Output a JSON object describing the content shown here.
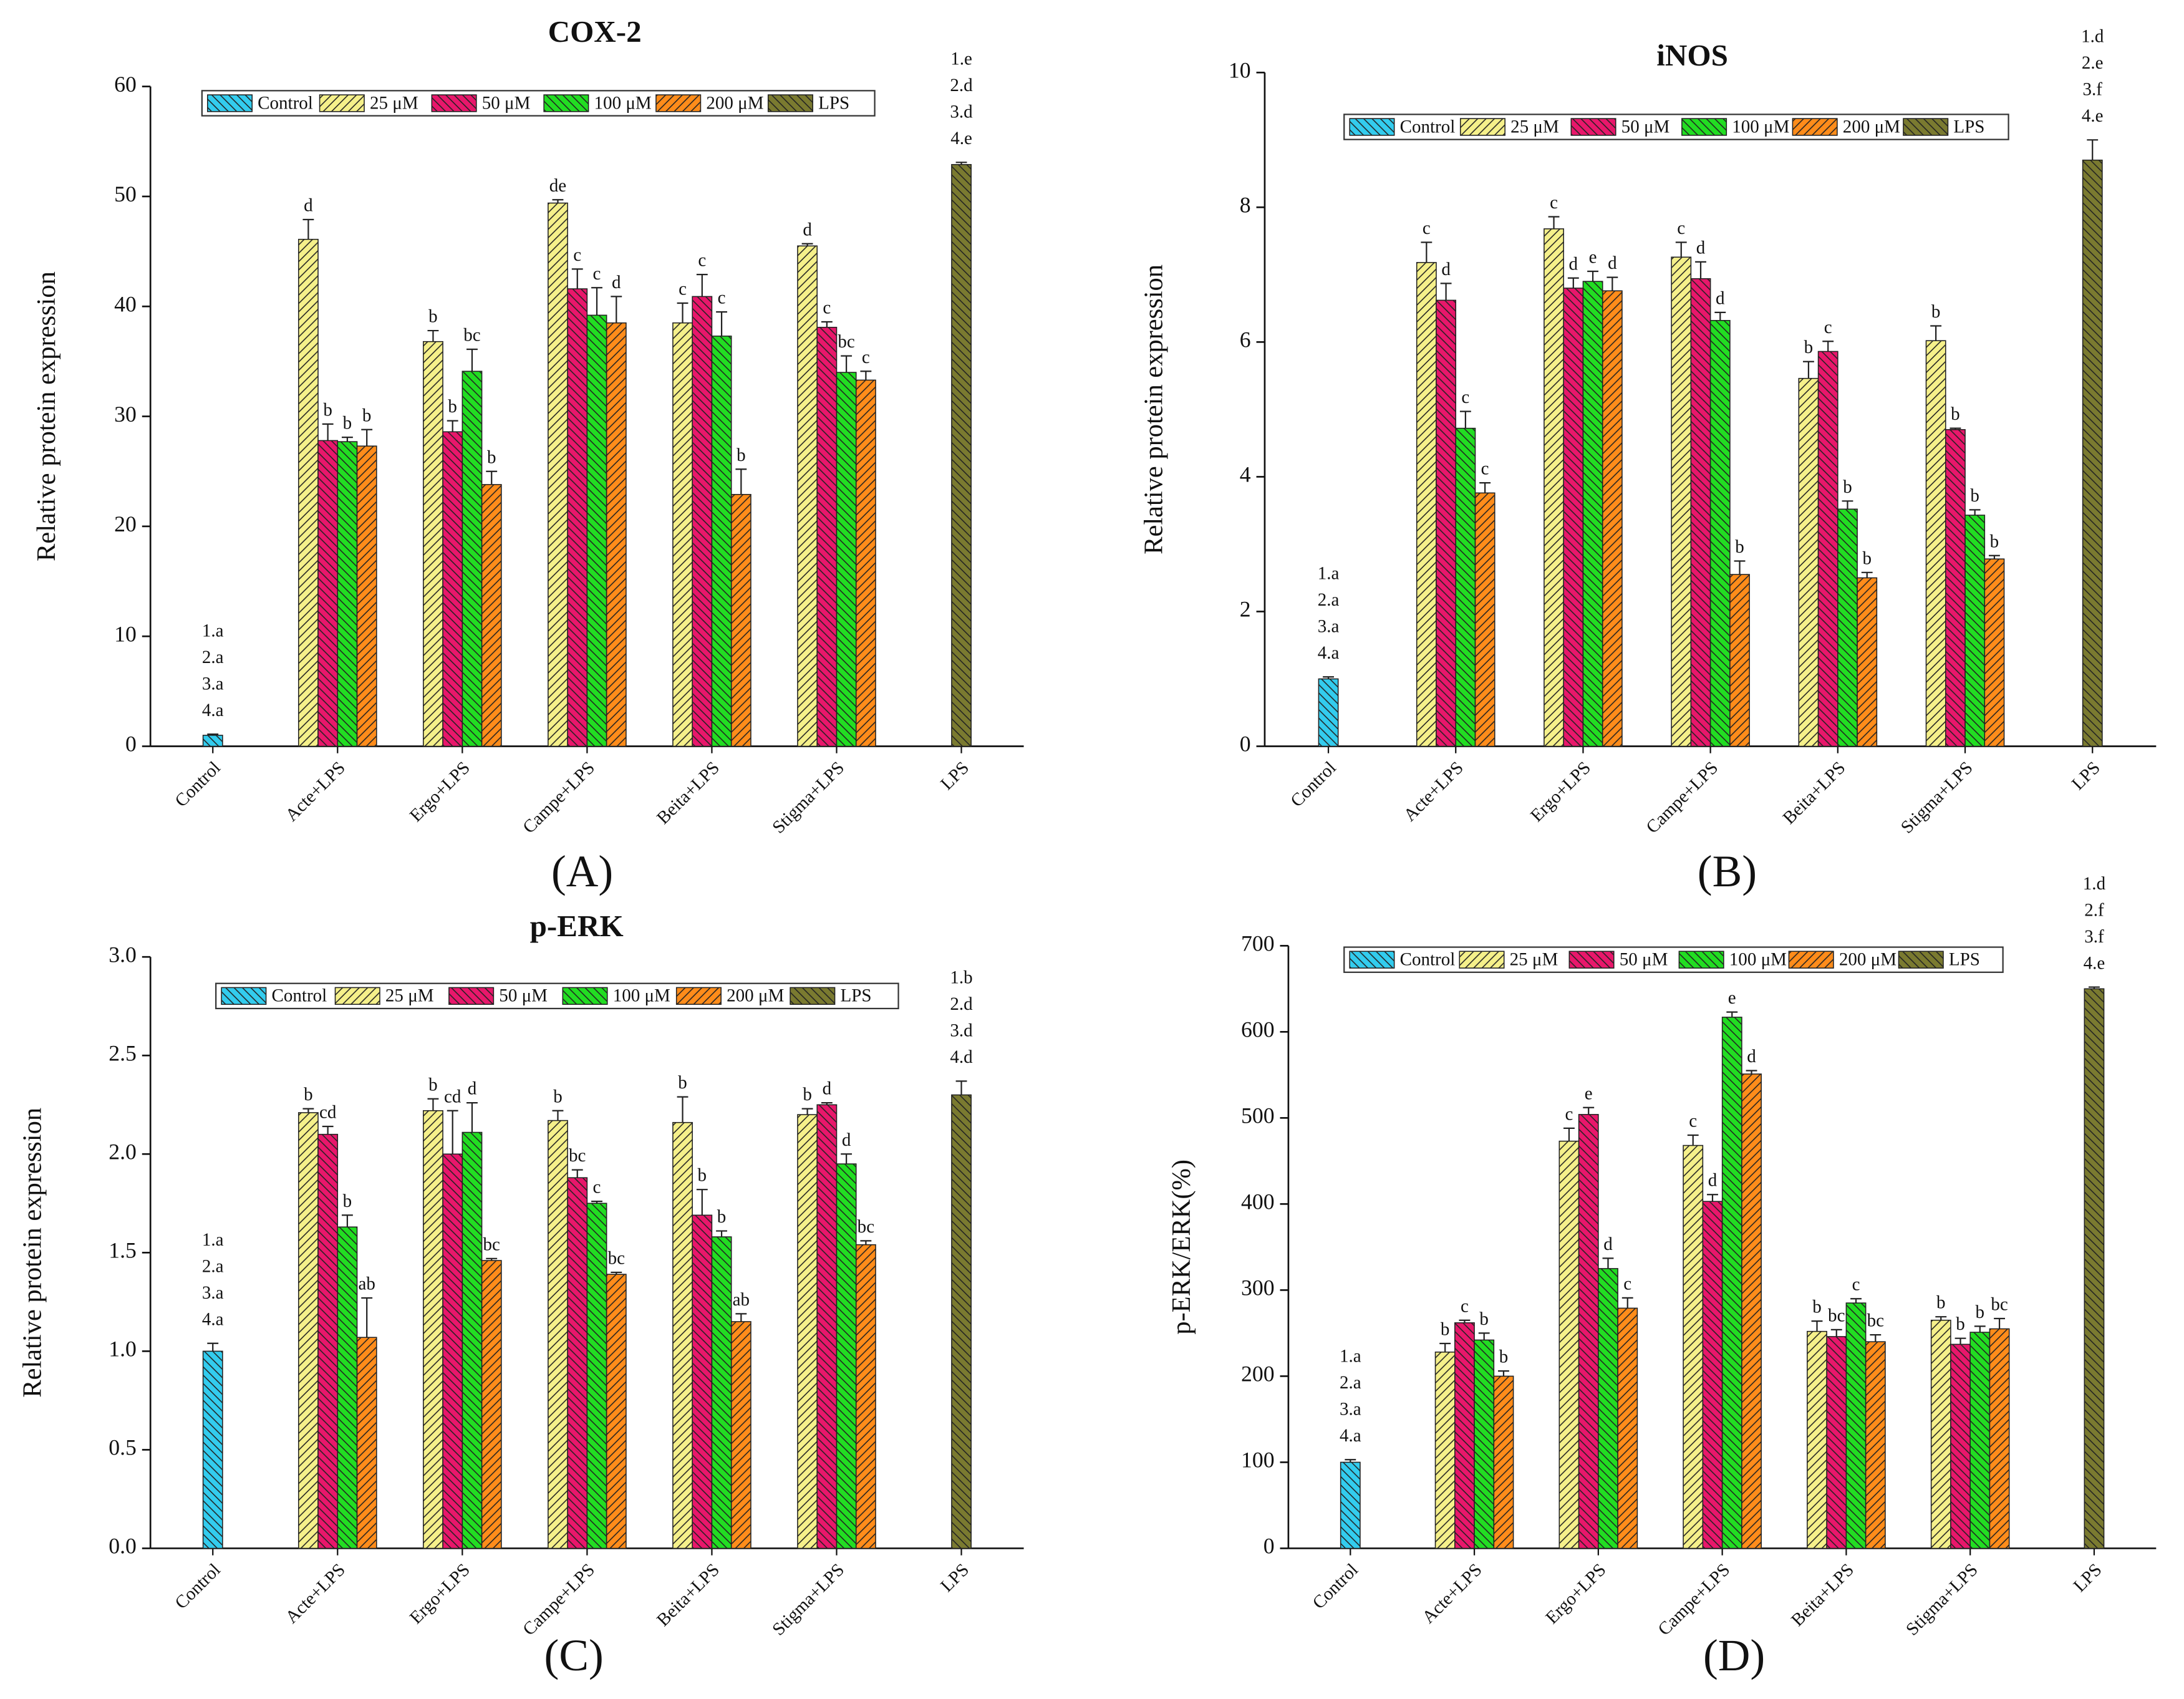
{
  "chart_data": [
    {
      "type": "bar",
      "title": "COX-2",
      "panel_label": "(A)",
      "y_label": "Relative protein expression",
      "categories": [
        "Control",
        "Acte+LPS",
        "Ergo+LPS",
        "Campe+LPS",
        "Beita+LPS",
        "Stigma+LPS",
        "LPS"
      ],
      "ylim": [
        0,
        60
      ],
      "yticks": [
        0,
        10,
        20,
        30,
        40,
        50,
        60
      ],
      "series": [
        {
          "name": "Control",
          "color": "#33ccee",
          "hatch": "\\",
          "values": [
            1.0,
            null,
            null,
            null,
            null,
            null,
            null
          ],
          "errors": [
            0.1,
            null,
            null,
            null,
            null,
            null,
            null
          ],
          "letters": [
            [
              "1.a",
              "2.a",
              "3.a",
              "4.a"
            ],
            null,
            null,
            null,
            null,
            null,
            null
          ]
        },
        {
          "name": "25 μM",
          "color": "#f5f08a",
          "hatch": "/",
          "values": [
            null,
            46.1,
            36.8,
            49.4,
            38.5,
            45.5,
            null
          ],
          "errors": [
            null,
            1.8,
            1.0,
            0.3,
            1.8,
            0.2,
            null
          ],
          "letters": [
            null,
            "d",
            "b",
            "de",
            "c",
            "d",
            null
          ]
        },
        {
          "name": "50 μM",
          "color": "#e8176b",
          "hatch": "\\",
          "values": [
            null,
            27.8,
            28.6,
            41.6,
            40.9,
            38.1,
            null
          ],
          "errors": [
            null,
            1.5,
            1.0,
            1.8,
            2.0,
            0.5,
            null
          ],
          "letters": [
            null,
            "b",
            "b",
            "c",
            "c",
            "c",
            null
          ]
        },
        {
          "name": "100 μM",
          "color": "#22dd22",
          "hatch": "\\",
          "values": [
            null,
            27.7,
            34.1,
            39.2,
            37.3,
            34.0,
            null
          ],
          "errors": [
            null,
            0.4,
            2.0,
            2.5,
            2.2,
            1.5,
            null
          ],
          "letters": [
            null,
            "b",
            "bc",
            "c",
            "c",
            "bc",
            null
          ]
        },
        {
          "name": "200 μM",
          "color": "#ff8c1a",
          "hatch": "/",
          "values": [
            null,
            27.3,
            23.8,
            38.5,
            22.9,
            33.3,
            null
          ],
          "errors": [
            null,
            1.5,
            1.2,
            2.4,
            2.3,
            0.8,
            null
          ],
          "letters": [
            null,
            "b",
            "b",
            "d",
            "b",
            "c",
            null
          ]
        },
        {
          "name": "LPS",
          "color": "#7a7a30",
          "hatch": "\\",
          "values": [
            null,
            null,
            null,
            null,
            null,
            null,
            52.9
          ],
          "errors": [
            null,
            null,
            null,
            null,
            null,
            null,
            0.2
          ],
          "letters": [
            null,
            null,
            null,
            null,
            null,
            null,
            [
              "1.e",
              "2.d",
              "3.d",
              "4.e"
            ]
          ]
        }
      ]
    },
    {
      "type": "bar",
      "title": "iNOS",
      "panel_label": "(B)",
      "y_label": "Relative protein expression",
      "categories": [
        "Control",
        "Acte+LPS",
        "Ergo+LPS",
        "Campe+LPS",
        "Beita+LPS",
        "Stigma+LPS",
        "LPS"
      ],
      "ylim": [
        0,
        10
      ],
      "yticks": [
        0,
        2,
        4,
        6,
        8,
        10
      ],
      "series": [
        {
          "name": "Control",
          "color": "#33ccee",
          "hatch": "\\",
          "values": [
            1.0,
            null,
            null,
            null,
            null,
            null,
            null
          ],
          "errors": [
            0.03,
            null,
            null,
            null,
            null,
            null,
            null
          ],
          "letters": [
            [
              "1.a",
              "2.a",
              "3.a",
              "4.a"
            ],
            null,
            null,
            null,
            null,
            null,
            null
          ]
        },
        {
          "name": "25 μM",
          "color": "#f5f08a",
          "hatch": "/",
          "values": [
            null,
            7.18,
            7.68,
            7.26,
            5.46,
            6.02,
            null
          ],
          "errors": [
            null,
            0.3,
            0.18,
            0.22,
            0.25,
            0.22,
            null
          ],
          "letters": [
            null,
            "c",
            "c",
            "c",
            "b",
            "b",
            null
          ]
        },
        {
          "name": "50 μM",
          "color": "#e8176b",
          "hatch": "\\",
          "values": [
            null,
            6.62,
            6.8,
            6.94,
            5.86,
            4.7,
            null
          ],
          "errors": [
            null,
            0.25,
            0.15,
            0.25,
            0.15,
            0.02,
            null
          ],
          "letters": [
            null,
            "d",
            "d",
            "d",
            "c",
            "b",
            null
          ]
        },
        {
          "name": "100 μM",
          "color": "#22dd22",
          "hatch": "\\",
          "values": [
            null,
            4.72,
            6.9,
            6.32,
            3.52,
            3.43,
            null
          ],
          "errors": [
            null,
            0.25,
            0.15,
            0.12,
            0.12,
            0.08,
            null
          ],
          "letters": [
            null,
            "c",
            "e",
            "d",
            "b",
            "b",
            null
          ]
        },
        {
          "name": "200 μM",
          "color": "#ff8c1a",
          "hatch": "/",
          "values": [
            null,
            3.76,
            6.76,
            2.55,
            2.5,
            2.78,
            null
          ],
          "errors": [
            null,
            0.15,
            0.2,
            0.2,
            0.08,
            0.05,
            null
          ],
          "letters": [
            null,
            "c",
            "d",
            "b",
            "b",
            "b",
            null
          ]
        },
        {
          "name": "LPS",
          "color": "#7a7a30",
          "hatch": "\\",
          "values": [
            null,
            null,
            null,
            null,
            null,
            null,
            8.7
          ],
          "errors": [
            null,
            null,
            null,
            null,
            null,
            null,
            0.3
          ],
          "letters": [
            null,
            null,
            null,
            null,
            null,
            null,
            [
              "1.d",
              "2.e",
              "3.f",
              "4.e"
            ]
          ]
        }
      ]
    },
    {
      "type": "bar",
      "title": "p-ERK",
      "panel_label": "(C)",
      "y_label": "Relative protein expression",
      "categories": [
        "Control",
        "Acte+LPS",
        "Ergo+LPS",
        "Campe+LPS",
        "Beita+LPS",
        "Stigma+LPS",
        "LPS"
      ],
      "ylim": [
        0,
        3
      ],
      "yticks": [
        {
          "value": 0,
          "label": "0.0"
        },
        0.5,
        {
          "value": 1,
          "label": "1.0"
        },
        1.5,
        {
          "value": 2,
          "label": "2.0"
        },
        2.5,
        {
          "value": 3,
          "label": "3.0"
        }
      ],
      "series": [
        {
          "name": "Control",
          "color": "#33ccee",
          "hatch": "\\",
          "values": [
            1.0,
            null,
            null,
            null,
            null,
            null,
            null
          ],
          "errors": [
            0.04,
            null,
            null,
            null,
            null,
            null,
            null
          ],
          "letters": [
            [
              "1.a",
              "2.a",
              "3.a",
              "4.a"
            ],
            null,
            null,
            null,
            null,
            null,
            null
          ]
        },
        {
          "name": "25 μM",
          "color": "#f5f08a",
          "hatch": "/",
          "values": [
            null,
            2.21,
            2.22,
            2.17,
            2.16,
            2.2,
            null
          ],
          "errors": [
            null,
            0.02,
            0.06,
            0.05,
            0.13,
            0.03,
            null
          ],
          "letters": [
            null,
            "b",
            "b",
            "b",
            "b",
            "b",
            null
          ]
        },
        {
          "name": "50 μM",
          "color": "#e8176b",
          "hatch": "\\",
          "values": [
            null,
            2.1,
            2.0,
            1.88,
            1.69,
            2.25,
            null
          ],
          "errors": [
            null,
            0.04,
            0.22,
            0.04,
            0.13,
            0.01,
            null
          ],
          "letters": [
            null,
            "cd",
            "cd",
            "bc",
            "b",
            "d",
            null
          ]
        },
        {
          "name": "100 μM",
          "color": "#22dd22",
          "hatch": "\\",
          "values": [
            null,
            1.63,
            2.11,
            1.75,
            1.58,
            1.95,
            null
          ],
          "errors": [
            null,
            0.06,
            0.15,
            0.01,
            0.03,
            0.05,
            null
          ],
          "letters": [
            null,
            "b",
            "d",
            "c",
            "b",
            "d",
            null
          ]
        },
        {
          "name": "200 μM",
          "color": "#ff8c1a",
          "hatch": "/",
          "values": [
            null,
            1.07,
            1.46,
            1.39,
            1.15,
            1.54,
            null
          ],
          "errors": [
            null,
            0.2,
            0.01,
            0.01,
            0.04,
            0.02,
            null
          ],
          "letters": [
            null,
            "ab",
            "bc",
            "bc",
            "ab",
            "bc",
            null
          ]
        },
        {
          "name": "LPS",
          "color": "#7a7a30",
          "hatch": "\\",
          "values": [
            null,
            null,
            null,
            null,
            null,
            null,
            2.3
          ],
          "errors": [
            null,
            null,
            null,
            null,
            null,
            null,
            0.07
          ],
          "letters": [
            null,
            null,
            null,
            null,
            null,
            null,
            [
              "1.b",
              "2.d",
              "3.d",
              "4.d"
            ]
          ]
        }
      ]
    },
    {
      "type": "bar",
      "panel_label": "(D)",
      "y_label": "p-ERK/ERK(%)",
      "categories": [
        "Control",
        "Acte+LPS",
        "Ergo+LPS",
        "Campe+LPS",
        "Beita+LPS",
        "Stigma+LPS",
        "LPS"
      ],
      "ylim": [
        0,
        700
      ],
      "yticks": [
        0,
        100,
        200,
        300,
        400,
        500,
        600,
        700
      ],
      "series": [
        {
          "name": "Control",
          "color": "#33ccee",
          "hatch": "\\",
          "values": [
            100,
            null,
            null,
            null,
            null,
            null,
            null
          ],
          "errors": [
            3,
            null,
            null,
            null,
            null,
            null,
            null
          ],
          "letters": [
            [
              "1.a",
              "2.a",
              "3.a",
              "4.a"
            ],
            null,
            null,
            null,
            null,
            null,
            null
          ]
        },
        {
          "name": "25 μM",
          "color": "#f5f08a",
          "hatch": "/",
          "values": [
            null,
            228,
            473,
            468,
            252,
            265,
            null
          ],
          "errors": [
            null,
            10,
            15,
            12,
            12,
            4,
            null
          ],
          "letters": [
            null,
            "b",
            "c",
            "c",
            "b",
            "b",
            null
          ]
        },
        {
          "name": "50 μM",
          "color": "#e8176b",
          "hatch": "\\",
          "values": [
            null,
            262,
            504,
            403,
            246,
            237,
            null
          ],
          "errors": [
            null,
            3,
            8,
            8,
            8,
            7,
            null
          ],
          "letters": [
            null,
            "c",
            "e",
            "d",
            "bc",
            "b",
            null
          ]
        },
        {
          "name": "100 μM",
          "color": "#22dd22",
          "hatch": "\\",
          "values": [
            null,
            242,
            325,
            617,
            285,
            251,
            null
          ],
          "errors": [
            null,
            8,
            12,
            6,
            5,
            7,
            null
          ],
          "letters": [
            null,
            "b",
            "d",
            "e",
            "c",
            "b",
            null
          ]
        },
        {
          "name": "200 μM",
          "color": "#ff8c1a",
          "hatch": "/",
          "values": [
            null,
            200,
            279,
            551,
            240,
            255,
            null
          ],
          "errors": [
            null,
            6,
            12,
            4,
            8,
            12,
            null
          ],
          "letters": [
            null,
            "b",
            "c",
            "d",
            "bc",
            "bc",
            null
          ]
        },
        {
          "name": "LPS",
          "color": "#7a7a30",
          "hatch": "\\",
          "values": [
            null,
            null,
            null,
            null,
            null,
            null,
            650
          ],
          "errors": [
            null,
            null,
            null,
            null,
            null,
            null,
            2
          ],
          "letters": [
            null,
            null,
            null,
            null,
            null,
            null,
            [
              "1.d",
              "2.f",
              "3.f",
              "4.e"
            ]
          ]
        }
      ]
    }
  ]
}
